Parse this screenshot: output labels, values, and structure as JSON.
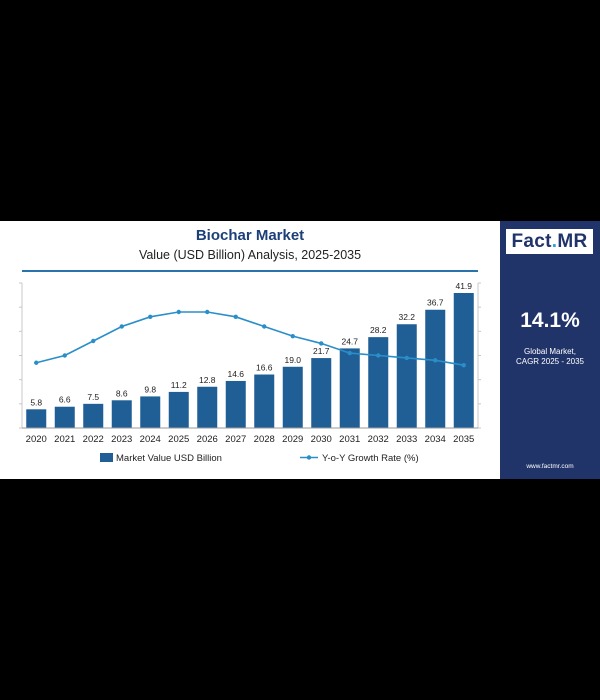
{
  "chart_data": {
    "type": "bar",
    "title": "Biochar Market",
    "subtitle": "Value (USD Billion) Analysis, 2025-2035",
    "categories": [
      "2020",
      "2021",
      "2022",
      "2023",
      "2024",
      "2025",
      "2026",
      "2027",
      "2028",
      "2029",
      "2030",
      "2031",
      "2032",
      "2033",
      "2034",
      "2035"
    ],
    "series": [
      {
        "name": "Market Value USD Billion",
        "type": "bar",
        "values": [
          5.8,
          6.6,
          7.5,
          8.6,
          9.8,
          11.2,
          12.8,
          14.6,
          16.6,
          19.0,
          21.7,
          24.7,
          28.2,
          32.2,
          36.7,
          41.9
        ],
        "labels": [
          "5.8",
          "6.6",
          "7.5",
          "8.6",
          "9.8",
          "11.2",
          "12.8",
          "14.6",
          "16.6",
          "19.0",
          "21.7",
          "24.7",
          "28.2",
          "32.2",
          "36.7",
          "41.9"
        ],
        "color": "#1f5f96"
      },
      {
        "name": "Y-o-Y Growth Rate (%)",
        "type": "line",
        "values": [
          13.7,
          14.0,
          14.6,
          15.2,
          15.6,
          15.8,
          15.8,
          15.6,
          15.2,
          14.8,
          14.5,
          14.1,
          14.0,
          13.9,
          13.8,
          13.6
        ],
        "color": "#2a8ec9"
      }
    ],
    "ylim": [
      0,
      45
    ],
    "y2lim": [
      11,
      17
    ],
    "legend_position": "bottom",
    "grid": false
  },
  "sidebar": {
    "logo_text": "Fact",
    "logo_dot": ".",
    "logo_suffix": "MR",
    "cagr_value": "14.1%",
    "cagr_label_line1": "Global Market,",
    "cagr_label_line2": "CAGR 2025 - 2035",
    "website": "www.factmr.com",
    "background": "#21346a"
  }
}
